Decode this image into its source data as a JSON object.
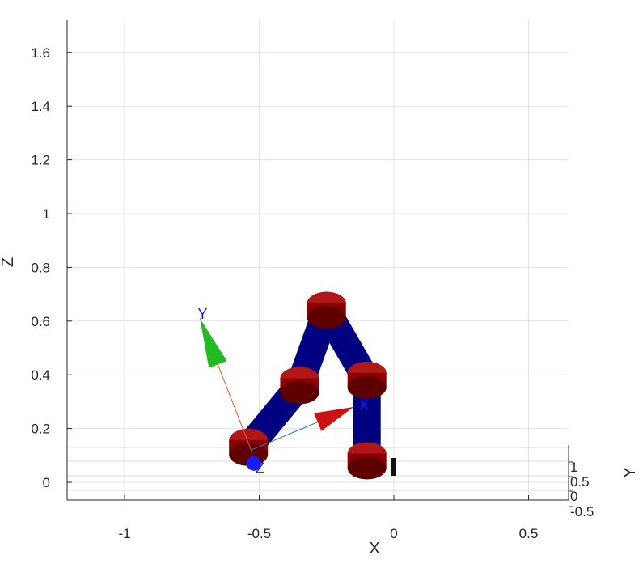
{
  "chart_data": {
    "type": "3d-plot",
    "xlabel": "X",
    "ylabel": "Y",
    "zlabel": "Z",
    "x_ticks": [
      "-1",
      "-0.5",
      "0",
      "0.5"
    ],
    "x_tick_values": [
      -1,
      -0.5,
      0,
      0.5
    ],
    "z_ticks": [
      "0",
      "0.2",
      "0.4",
      "0.6",
      "0.8",
      "1",
      "1.2",
      "1.4",
      "1.6"
    ],
    "z_tick_values": [
      0,
      0.2,
      0.4,
      0.6,
      0.8,
      1.0,
      1.2,
      1.4,
      1.6
    ],
    "y_ticks": [
      "1",
      "0.5",
      "0",
      "-0.5"
    ],
    "y_tick_values": [
      1,
      0.5,
      0,
      -0.5
    ],
    "xlim": [
      -1.2,
      0.65
    ],
    "zlim": [
      -0.07,
      1.73
    ],
    "grid": true,
    "robot": {
      "link_color": "#000080",
      "joint_color": "#8b0000",
      "joints": [
        {
          "x": -0.1,
          "z": 0.08
        },
        {
          "x": -0.1,
          "z": 0.38
        },
        {
          "x": -0.25,
          "z": 0.64
        },
        {
          "x": -0.35,
          "z": 0.36
        },
        {
          "x": -0.54,
          "z": 0.13
        }
      ]
    },
    "frame": {
      "origin": {
        "x": -0.53,
        "z": 0.12
      },
      "axes": [
        {
          "label": "X",
          "tip": {
            "x": -0.15,
            "z": 0.28
          },
          "line_color": "#1f77b4",
          "cone_color": "#cc1111"
        },
        {
          "label": "Y",
          "tip": {
            "x": -0.72,
            "z": 0.61
          },
          "line_color": "#e8552a",
          "cone_color": "#22bb22"
        },
        {
          "label": "Z",
          "tip": {
            "x": -0.52,
            "z": 0.07
          },
          "line_color": "#1f77b4",
          "cone_color": "#1a1aff"
        }
      ]
    }
  }
}
